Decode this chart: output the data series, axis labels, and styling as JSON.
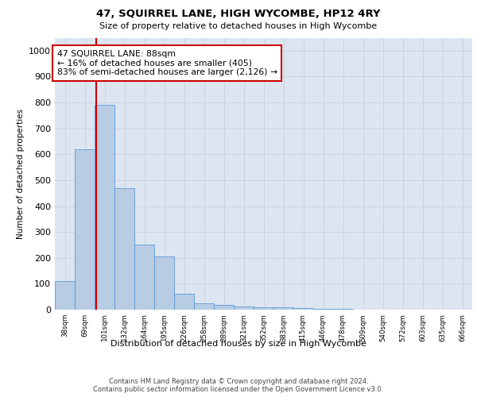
{
  "title": "47, SQUIRREL LANE, HIGH WYCOMBE, HP12 4RY",
  "subtitle": "Size of property relative to detached houses in High Wycombe",
  "xlabel": "Distribution of detached houses by size in High Wycombe",
  "ylabel": "Number of detached properties",
  "footer": "Contains HM Land Registry data © Crown copyright and database right 2024.\nContains public sector information licensed under the Open Government Licence v3.0.",
  "bin_labels": [
    "38sqm",
    "69sqm",
    "101sqm",
    "132sqm",
    "164sqm",
    "195sqm",
    "226sqm",
    "258sqm",
    "289sqm",
    "321sqm",
    "352sqm",
    "383sqm",
    "415sqm",
    "446sqm",
    "478sqm",
    "509sqm",
    "540sqm",
    "572sqm",
    "603sqm",
    "635sqm",
    "666sqm"
  ],
  "bar_values": [
    110,
    620,
    790,
    470,
    250,
    205,
    60,
    25,
    18,
    12,
    10,
    8,
    5,
    3,
    2,
    1,
    0,
    0,
    0,
    0,
    0
  ],
  "bar_color": "#b8cce4",
  "bar_edgecolor": "#5b9bd5",
  "ylim": [
    0,
    1050
  ],
  "yticks": [
    0,
    100,
    200,
    300,
    400,
    500,
    600,
    700,
    800,
    900,
    1000
  ],
  "property_line_x": 1.58,
  "property_line_color": "#cc0000",
  "annotation_text": "47 SQUIRREL LANE: 88sqm\n← 16% of detached houses are smaller (405)\n83% of semi-detached houses are larger (2,126) →",
  "annotation_box_color": "#ffffff",
  "annotation_box_edgecolor": "#cc0000",
  "grid_color": "#c8d4e3",
  "background_color": "#dde6f0"
}
